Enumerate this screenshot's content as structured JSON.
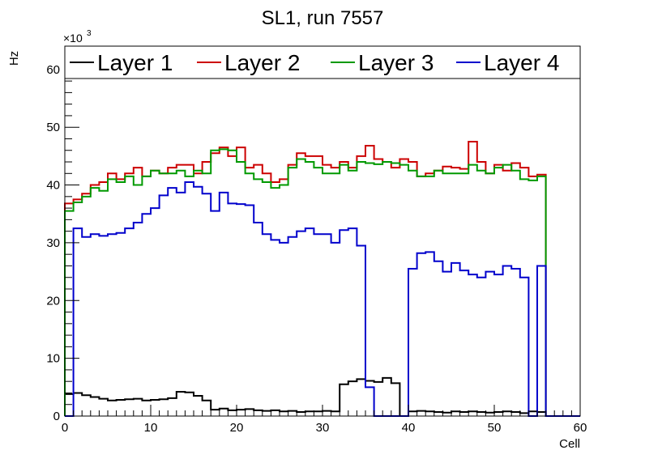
{
  "chart_data": {
    "type": "line",
    "style": "step-histogram",
    "title": "SL1, run 7557",
    "xlabel": "Cell",
    "ylabel": "Hz",
    "y_multiplier": "×10",
    "y_multiplier_exp": "3",
    "xlim": [
      0,
      60
    ],
    "ylim": [
      0,
      62500
    ],
    "x_ticks": [
      0,
      10,
      20,
      30,
      40,
      50,
      60
    ],
    "y_ticks": [
      0,
      10,
      20,
      30,
      40,
      50,
      60
    ],
    "y_tick_scale": 1000,
    "legend_position": "top",
    "grid": false,
    "bin_edges_start": 0,
    "bin_width": 1,
    "series": [
      {
        "name": "Layer 1",
        "color": "#000000",
        "values": [
          3800,
          4000,
          3600,
          3300,
          3000,
          2700,
          2800,
          2900,
          3000,
          2700,
          2800,
          2900,
          3100,
          4200,
          4100,
          3500,
          2700,
          1100,
          1300,
          1000,
          1100,
          1200,
          1000,
          900,
          1000,
          800,
          900,
          700,
          800,
          800,
          900,
          800,
          5500,
          6000,
          6400,
          6100,
          5900,
          6600,
          5700,
          0,
          800,
          900,
          800,
          700,
          600,
          800,
          700,
          800,
          700,
          600,
          700,
          800,
          700,
          500,
          800,
          700,
          0,
          0,
          0,
          0
        ]
      },
      {
        "name": "Layer 2",
        "color": "#cc0000",
        "values": [
          36800,
          37500,
          38500,
          40000,
          40500,
          42000,
          41000,
          42000,
          43000,
          41500,
          42500,
          42000,
          43000,
          43500,
          43500,
          42000,
          44000,
          45500,
          46500,
          45000,
          46500,
          43000,
          43500,
          42000,
          40500,
          41000,
          43500,
          45500,
          45000,
          45000,
          43500,
          43000,
          44000,
          43000,
          45000,
          46800,
          44500,
          44000,
          43000,
          44500,
          44000,
          41500,
          42000,
          42500,
          43200,
          43000,
          42800,
          47500,
          44000,
          42000,
          43500,
          42500,
          43800,
          43000,
          41500,
          41800,
          0,
          0,
          0,
          0
        ]
      },
      {
        "name": "Layer 3",
        "color": "#009900",
        "values": [
          35500,
          37000,
          38000,
          39500,
          39000,
          41000,
          40500,
          41500,
          40000,
          41500,
          42500,
          42000,
          42000,
          42500,
          41500,
          42500,
          42000,
          46000,
          46200,
          46000,
          44000,
          42000,
          41000,
          40500,
          39500,
          40000,
          43000,
          44500,
          44000,
          43000,
          42000,
          42000,
          43500,
          42500,
          44000,
          43800,
          43600,
          44000,
          43800,
          43500,
          42500,
          41500,
          41500,
          42500,
          42000,
          42000,
          42000,
          43500,
          42500,
          42000,
          43000,
          43500,
          42500,
          41000,
          40800,
          41500,
          0,
          0,
          0,
          0
        ]
      },
      {
        "name": "Layer 4",
        "color": "#0000cc",
        "values": [
          0,
          32500,
          31000,
          31500,
          31200,
          31500,
          31700,
          32500,
          33500,
          35000,
          36000,
          38200,
          39500,
          38700,
          40500,
          39700,
          38500,
          35500,
          38700,
          36800,
          36700,
          36500,
          33500,
          31500,
          30500,
          30000,
          31000,
          32000,
          32500,
          31500,
          31500,
          30000,
          32200,
          32500,
          29500,
          5000,
          0,
          0,
          0,
          0,
          25500,
          28200,
          28400,
          26800,
          25000,
          26500,
          25200,
          24500,
          24000,
          25000,
          24500,
          26000,
          25500,
          24000,
          0,
          26000,
          0,
          0,
          0,
          0
        ]
      }
    ]
  }
}
